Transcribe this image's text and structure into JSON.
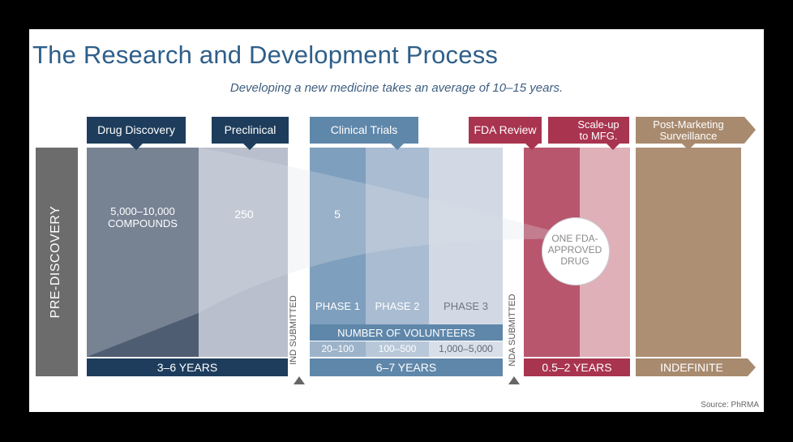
{
  "title": "The Research and Development Process",
  "subtitle": "Developing a new medicine takes an average of 10–15 years.",
  "stages": {
    "pre_discovery": "PRE-DISCOVERY",
    "drug_discovery": "Drug Discovery",
    "preclinical": "Preclinical",
    "clinical_trials": "Clinical Trials",
    "fda_review": "FDA Review",
    "scale_up": "Scale-up to MFG.",
    "post_marketing": "Post-Marketing Surveillance"
  },
  "compounds": {
    "discovery": "5,000–10,000 COMPOUNDS",
    "preclinical": "250",
    "clinical": "5",
    "approved": "ONE FDA-APPROVED DRUG"
  },
  "phases": [
    "PHASE 1",
    "PHASE 2",
    "PHASE 3"
  ],
  "volunteers": {
    "header": "NUMBER OF VOLUNTEERS",
    "counts": [
      "20–100",
      "100–500",
      "1,000–5,000"
    ]
  },
  "durations": {
    "discovery_preclinical": "3–6 YEARS",
    "clinical": "6–7 YEARS",
    "fda": "0.5–2 YEARS",
    "post": "INDEFINITE"
  },
  "milestones": {
    "ind": "IND SUBMITTED",
    "nda": "NDA SUBMITTED"
  },
  "source": "Source: PhRMA",
  "colors": {
    "navy": "#1e3d5c",
    "steel": "#5f87aa",
    "crimson": "#a8344f",
    "tan": "#a88a6e",
    "gray": "#6c6c6c"
  }
}
